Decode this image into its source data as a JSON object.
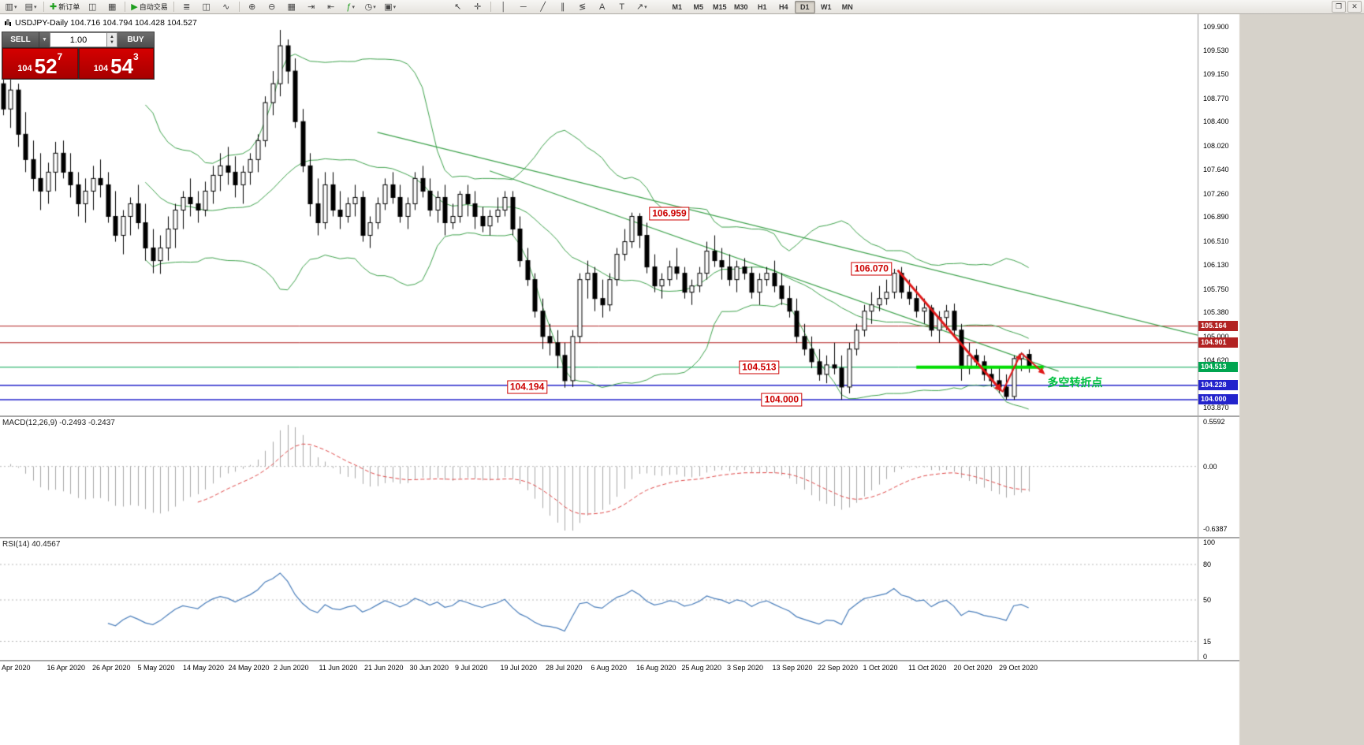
{
  "toolbar": {
    "items": [
      {
        "t": "icon",
        "name": "new-chart-icon",
        "glyph": "▥",
        "dropdown": true
      },
      {
        "t": "icon",
        "name": "profiles-icon",
        "glyph": "▤",
        "dropdown": true
      },
      {
        "t": "sep"
      },
      {
        "t": "button",
        "name": "new-order-button",
        "glyph": "✚",
        "glyph_color": "#1e9e1e",
        "label": "新订单"
      },
      {
        "t": "icon",
        "name": "market-watch-icon",
        "glyph": "◫"
      },
      {
        "t": "icon",
        "name": "data-window-icon",
        "glyph": "▦"
      },
      {
        "t": "sep"
      },
      {
        "t": "button",
        "name": "autotrading-button",
        "glyph": "▶",
        "glyph_color": "#1e9e1e",
        "label": "自动交易"
      },
      {
        "t": "sep"
      },
      {
        "t": "icon",
        "name": "bar-chart-icon",
        "glyph": "≣"
      },
      {
        "t": "icon",
        "name": "candlestick-chart-icon",
        "glyph": "◫"
      },
      {
        "t": "icon",
        "name": "line-chart-icon",
        "glyph": "∿"
      },
      {
        "t": "sep"
      },
      {
        "t": "icon",
        "name": "zoom-in-icon",
        "glyph": "⊕"
      },
      {
        "t": "icon",
        "name": "zoom-out-icon",
        "glyph": "⊖"
      },
      {
        "t": "icon",
        "name": "tile-windows-icon",
        "glyph": "▦"
      },
      {
        "t": "icon",
        "name": "auto-scroll-icon",
        "glyph": "⇥"
      },
      {
        "t": "icon",
        "name": "chart-shift-icon",
        "glyph": "⇤"
      },
      {
        "t": "icon",
        "name": "indicators-icon",
        "glyph": "ƒ",
        "glyph_color": "#1e9e1e",
        "dropdown": true
      },
      {
        "t": "icon",
        "name": "periods-icon",
        "glyph": "◷",
        "dropdown": true
      },
      {
        "t": "icon",
        "name": "templates-icon",
        "glyph": "▣",
        "dropdown": true
      },
      {
        "t": "gap"
      },
      {
        "t": "icon",
        "name": "cursor-icon",
        "glyph": "↖"
      },
      {
        "t": "icon",
        "name": "crosshair-icon",
        "glyph": "✛"
      },
      {
        "t": "sep"
      },
      {
        "t": "icon",
        "name": "vertical-line-icon",
        "glyph": "│"
      },
      {
        "t": "icon",
        "name": "horizontal-line-icon",
        "glyph": "─"
      },
      {
        "t": "icon",
        "name": "trendline-icon",
        "glyph": "╱"
      },
      {
        "t": "icon",
        "name": "equidistant-channel-icon",
        "glyph": "∥"
      },
      {
        "t": "icon",
        "name": "fibonacci-icon",
        "glyph": "≶"
      },
      {
        "t": "icon",
        "name": "text-icon",
        "glyph": "A"
      },
      {
        "t": "icon",
        "name": "label-icon",
        "glyph": "T"
      },
      {
        "t": "icon",
        "name": "arrows-icon",
        "glyph": "↗",
        "dropdown": true
      },
      {
        "t": "gap2"
      }
    ],
    "timeframes": [
      "M1",
      "M5",
      "M15",
      "M30",
      "H1",
      "H4",
      "D1",
      "W1",
      "MN"
    ],
    "active_timeframe": "D1",
    "window_buttons": [
      {
        "name": "restore-window-button",
        "glyph": "❐"
      },
      {
        "name": "close-window-button",
        "glyph": "✕"
      }
    ]
  },
  "chart": {
    "title_ohlc": "USDJPY-Daily 104.716 104.794 104.428 104.527"
  },
  "trade_panel": {
    "sell_label": "SELL",
    "buy_label": "BUY",
    "lot": "1.00",
    "sell_price": {
      "small": "104",
      "big": "52",
      "sup": "7"
    },
    "buy_price": {
      "small": "104",
      "big": "54",
      "sup": "3"
    }
  },
  "macd": {
    "label": "MACD(12,26,9) -0.2493 -0.2437",
    "axis_top": "0.5592",
    "axis_zero": "0.00",
    "axis_bottom": "-0.6387",
    "fast": 12,
    "slow": 26,
    "signal": 9
  },
  "rsi": {
    "label": "RSI(14) 40.4567",
    "period": 14,
    "axis_top": "100",
    "axis_bottom": "0",
    "levels": [
      80,
      50,
      15
    ]
  },
  "chart_data": {
    "type": "candlestick",
    "symbol": "USDJPY",
    "timeframe": "Daily",
    "ohlc_display": {
      "open": "104.716",
      "high": "104.794",
      "low": "104.428",
      "close": "104.527"
    },
    "price_axis_labels": [
      "109.900",
      "109.530",
      "109.150",
      "108.770",
      "108.400",
      "108.020",
      "107.640",
      "107.260",
      "106.890",
      "106.510",
      "106.130",
      "105.750",
      "105.380",
      "105.000",
      "104.620",
      "104.240",
      "103.870"
    ],
    "dates": [
      "Apr 2020",
      "16 Apr 2020",
      "26 Apr 2020",
      "5 May 2020",
      "14 May 2020",
      "24 May 2020",
      "2 Jun 2020",
      "11 Jun 2020",
      "21 Jun 2020",
      "30 Jun 2020",
      "9 Jul 2020",
      "19 Jul 2020",
      "28 Jul 2020",
      "6 Aug 2020",
      "16 Aug 2020",
      "25 Aug 2020",
      "3 Sep 2020",
      "13 Sep 2020",
      "22 Sep 2020",
      "1 Oct 2020",
      "11 Oct 2020",
      "20 Oct 2020",
      "29 Oct 2020"
    ],
    "tags": [
      {
        "text": "105.164",
        "value": 105.164,
        "color": "#b22222"
      },
      {
        "text": "104.901",
        "value": 104.901,
        "color": "#b22222"
      },
      {
        "text": "104.513",
        "value": 104.513,
        "color": "#00a550"
      },
      {
        "text": "104.228",
        "value": 104.228,
        "color": "#2323cc"
      },
      {
        "text": "104.000",
        "value": 104.0,
        "color": "#2323cc"
      }
    ],
    "hlines": [
      {
        "price": 105.164,
        "color": "#b22222",
        "width": 1
      },
      {
        "price": 104.901,
        "color": "#b22222",
        "width": 1
      },
      {
        "price": 104.513,
        "color": "#00a550",
        "width": 1
      },
      {
        "price": 104.228,
        "color": "#2323cc",
        "width": 1.5
      },
      {
        "price": 104.0,
        "color": "#2323cc",
        "width": 1.5
      }
    ],
    "annotations": [
      {
        "text": "106.959",
        "slot": 89,
        "price": 106.94
      },
      {
        "text": "106.070",
        "slot": 116,
        "price": 106.07
      },
      {
        "text": "104.513",
        "slot": 101,
        "price": 104.513
      },
      {
        "text": "104.194",
        "slot": 70,
        "price": 104.194
      },
      {
        "text": "104.000",
        "slot": 104,
        "price": 104.0
      }
    ],
    "trendlines": [
      {
        "s1": 50,
        "p1": 108.23,
        "s2": 161,
        "p2": 104.98
      },
      {
        "s1": 65,
        "p1": 107.62,
        "s2": 141,
        "p2": 104.45
      }
    ],
    "arrows": [
      {
        "s1": 119.5,
        "p1": 106.05,
        "s2": 133.5,
        "p2": 104.12,
        "w": 3
      },
      {
        "s1": 133.5,
        "p1": 104.12,
        "s2": 136.0,
        "p2": 104.74,
        "w": 2
      },
      {
        "s1": 136.0,
        "p1": 104.74,
        "s2": 139.2,
        "p2": 104.4,
        "w": 2
      }
    ],
    "green_segment": {
      "s1": 122,
      "s2": 139,
      "price": 104.513
    },
    "note": {
      "text": "多空转折点",
      "slot": 139.5,
      "price": 104.3
    },
    "bollinger": {
      "period": 20,
      "deviation": 2
    },
    "colors": {
      "bull": "#ffffff",
      "bear": "#000000",
      "wick": "#000000",
      "bollinger": "#3fa34d",
      "trendline": "#3fa34d",
      "arrow": "#e01818",
      "note_green": "#00c040",
      "segment_green": "#00dd00",
      "macd_hist": "#a8a8a8",
      "macd_signal": "#e04848",
      "rsi_line": "#4a7ebb"
    },
    "ohlc": [
      [
        109.0,
        109.38,
        108.5,
        108.6
      ],
      [
        108.6,
        109.2,
        108.3,
        108.9
      ],
      [
        108.9,
        109.0,
        108.0,
        108.2
      ],
      [
        108.2,
        108.55,
        107.6,
        107.8
      ],
      [
        107.8,
        108.1,
        107.3,
        107.5
      ],
      [
        107.5,
        107.9,
        107.0,
        107.3
      ],
      [
        107.3,
        107.75,
        107.1,
        107.6
      ],
      [
        107.6,
        108.08,
        107.3,
        107.9
      ],
      [
        107.9,
        108.1,
        107.5,
        107.6
      ],
      [
        107.6,
        107.9,
        107.2,
        107.4
      ],
      [
        107.4,
        107.6,
        106.9,
        107.1
      ],
      [
        107.1,
        107.5,
        106.8,
        107.3
      ],
      [
        107.3,
        107.7,
        107.0,
        107.5
      ],
      [
        107.5,
        107.8,
        107.2,
        107.4
      ],
      [
        107.4,
        107.6,
        106.8,
        106.9
      ],
      [
        106.9,
        107.3,
        106.5,
        106.6
      ],
      [
        106.6,
        107.0,
        106.3,
        106.9
      ],
      [
        106.9,
        107.2,
        106.6,
        107.1
      ],
      [
        107.1,
        107.4,
        106.7,
        106.8
      ],
      [
        106.8,
        107.1,
        106.2,
        106.4
      ],
      [
        106.4,
        106.7,
        106.0,
        106.2
      ],
      [
        106.2,
        106.6,
        105.99,
        106.4
      ],
      [
        106.4,
        106.9,
        106.2,
        106.7
      ],
      [
        106.7,
        107.1,
        106.4,
        107.0
      ],
      [
        107.0,
        107.3,
        106.7,
        107.2
      ],
      [
        107.2,
        107.5,
        106.9,
        107.1
      ],
      [
        107.1,
        107.3,
        106.8,
        107.0
      ],
      [
        107.0,
        107.45,
        106.9,
        107.3
      ],
      [
        107.3,
        107.7,
        107.1,
        107.55
      ],
      [
        107.55,
        107.9,
        107.3,
        107.7
      ],
      [
        107.7,
        108.0,
        107.4,
        107.6
      ],
      [
        107.6,
        107.85,
        107.2,
        107.4
      ],
      [
        107.4,
        107.7,
        107.1,
        107.6
      ],
      [
        107.6,
        107.9,
        107.4,
        107.8
      ],
      [
        107.8,
        108.2,
        107.6,
        108.1
      ],
      [
        108.1,
        108.8,
        108.0,
        108.7
      ],
      [
        108.7,
        109.2,
        108.5,
        109.0
      ],
      [
        109.0,
        109.85,
        108.8,
        109.6
      ],
      [
        109.6,
        109.7,
        109.0,
        109.2
      ],
      [
        109.2,
        109.4,
        108.3,
        108.4
      ],
      [
        108.4,
        108.6,
        107.6,
        107.7
      ],
      [
        107.7,
        107.9,
        106.9,
        107.1
      ],
      [
        107.1,
        107.5,
        106.6,
        106.8
      ],
      [
        106.8,
        107.6,
        106.7,
        107.4
      ],
      [
        107.4,
        107.6,
        106.9,
        107.0
      ],
      [
        107.0,
        107.3,
        106.7,
        106.9
      ],
      [
        106.9,
        107.2,
        106.8,
        107.1
      ],
      [
        107.1,
        107.4,
        106.9,
        107.2
      ],
      [
        107.2,
        107.3,
        106.5,
        106.6
      ],
      [
        106.6,
        106.9,
        106.4,
        106.8
      ],
      [
        106.8,
        107.2,
        106.7,
        107.1
      ],
      [
        107.1,
        107.5,
        107.0,
        107.4
      ],
      [
        107.4,
        107.6,
        107.1,
        107.2
      ],
      [
        107.2,
        107.4,
        106.8,
        106.9
      ],
      [
        106.9,
        107.2,
        106.7,
        107.1
      ],
      [
        107.1,
        107.6,
        107.0,
        107.5
      ],
      [
        107.5,
        107.7,
        107.2,
        107.3
      ],
      [
        107.3,
        107.5,
        106.9,
        107.0
      ],
      [
        107.0,
        107.3,
        106.8,
        107.2
      ],
      [
        107.2,
        107.4,
        106.6,
        106.8
      ],
      [
        106.8,
        107.1,
        106.7,
        106.9
      ],
      [
        106.9,
        107.3,
        106.8,
        107.25
      ],
      [
        107.25,
        107.4,
        106.9,
        107.1
      ],
      [
        107.1,
        107.3,
        106.7,
        106.9
      ],
      [
        106.9,
        107.05,
        106.65,
        106.75
      ],
      [
        106.75,
        107.0,
        106.6,
        106.9
      ],
      [
        106.9,
        107.2,
        106.8,
        107.0
      ],
      [
        107.0,
        107.3,
        106.9,
        107.2
      ],
      [
        107.2,
        107.3,
        106.6,
        106.7
      ],
      [
        106.7,
        106.9,
        106.1,
        106.2
      ],
      [
        106.2,
        106.4,
        105.8,
        105.9
      ],
      [
        105.9,
        106.0,
        105.3,
        105.4
      ],
      [
        105.4,
        105.6,
        104.8,
        105.0
      ],
      [
        105.0,
        105.2,
        104.7,
        104.9
      ],
      [
        104.9,
        105.1,
        104.5,
        104.7
      ],
      [
        104.7,
        104.9,
        104.19,
        104.3
      ],
      [
        104.3,
        105.1,
        104.2,
        105.0
      ],
      [
        105.0,
        106.0,
        104.9,
        105.9
      ],
      [
        105.9,
        106.2,
        105.6,
        106.0
      ],
      [
        106.0,
        106.1,
        105.4,
        105.6
      ],
      [
        105.6,
        105.9,
        105.3,
        105.5
      ],
      [
        105.5,
        106.0,
        105.4,
        105.9
      ],
      [
        105.9,
        106.4,
        105.8,
        106.3
      ],
      [
        106.3,
        106.7,
        106.2,
        106.5
      ],
      [
        106.5,
        106.96,
        106.4,
        106.9
      ],
      [
        106.9,
        106.95,
        106.4,
        106.6
      ],
      [
        106.6,
        106.8,
        106.0,
        106.1
      ],
      [
        106.1,
        106.3,
        105.7,
        105.8
      ],
      [
        105.8,
        106.0,
        105.6,
        105.9
      ],
      [
        105.9,
        106.2,
        105.8,
        106.1
      ],
      [
        106.1,
        106.4,
        105.9,
        106.0
      ],
      [
        106.0,
        106.1,
        105.6,
        105.7
      ],
      [
        105.7,
        105.9,
        105.5,
        105.8
      ],
      [
        105.8,
        106.1,
        105.7,
        106.0
      ],
      [
        106.0,
        106.5,
        105.9,
        106.35
      ],
      [
        106.35,
        106.6,
        106.1,
        106.2
      ],
      [
        106.2,
        106.4,
        105.9,
        106.1
      ],
      [
        106.1,
        106.3,
        105.8,
        105.9
      ],
      [
        105.9,
        106.2,
        105.7,
        106.1
      ],
      [
        106.1,
        106.24,
        105.9,
        106.0
      ],
      [
        106.0,
        106.1,
        105.6,
        105.7
      ],
      [
        105.7,
        106.0,
        105.5,
        105.9
      ],
      [
        105.9,
        106.1,
        105.8,
        106.0
      ],
      [
        106.0,
        106.2,
        105.7,
        105.8
      ],
      [
        105.8,
        106.0,
        105.5,
        105.6
      ],
      [
        105.6,
        105.8,
        105.3,
        105.4
      ],
      [
        105.4,
        105.6,
        104.9,
        105.0
      ],
      [
        105.0,
        105.2,
        104.7,
        104.8
      ],
      [
        104.8,
        105.0,
        104.5,
        104.6
      ],
      [
        104.6,
        104.8,
        104.3,
        104.4
      ],
      [
        104.4,
        104.7,
        104.26,
        104.55
      ],
      [
        104.55,
        104.9,
        104.4,
        104.5
      ],
      [
        104.5,
        104.7,
        104.0,
        104.2
      ],
      [
        104.2,
        104.9,
        104.1,
        104.8
      ],
      [
        104.8,
        105.2,
        104.7,
        105.1
      ],
      [
        105.1,
        105.5,
        105.0,
        105.4
      ],
      [
        105.4,
        105.7,
        105.2,
        105.5
      ],
      [
        105.5,
        105.8,
        105.4,
        105.6
      ],
      [
        105.6,
        105.9,
        105.5,
        105.7
      ],
      [
        105.7,
        106.07,
        105.6,
        106.0
      ],
      [
        106.0,
        106.1,
        105.6,
        105.7
      ],
      [
        105.7,
        105.9,
        105.5,
        105.6
      ],
      [
        105.6,
        105.8,
        105.3,
        105.4
      ],
      [
        105.4,
        105.6,
        105.2,
        105.45
      ],
      [
        105.45,
        105.5,
        105.0,
        105.1
      ],
      [
        105.1,
        105.4,
        104.9,
        105.3
      ],
      [
        105.3,
        105.5,
        105.1,
        105.4
      ],
      [
        105.4,
        105.52,
        105.0,
        105.1
      ],
      [
        105.1,
        105.2,
        104.3,
        104.5
      ],
      [
        104.5,
        104.9,
        104.4,
        104.7
      ],
      [
        104.7,
        104.8,
        104.5,
        104.6
      ],
      [
        104.6,
        104.7,
        104.3,
        104.4
      ],
      [
        104.4,
        104.5,
        104.2,
        104.3
      ],
      [
        104.3,
        104.5,
        104.1,
        104.2
      ],
      [
        104.2,
        104.4,
        104.0,
        104.05
      ],
      [
        104.05,
        104.7,
        104.0,
        104.65
      ],
      [
        104.65,
        104.75,
        104.45,
        104.72
      ],
      [
        104.716,
        104.794,
        104.428,
        104.527
      ]
    ]
  }
}
